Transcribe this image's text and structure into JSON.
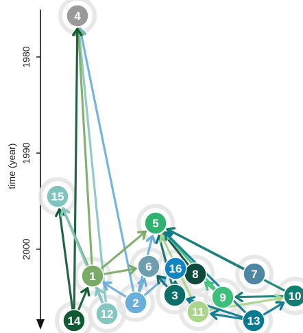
{
  "axis": {
    "title": "time (year)",
    "direction": "downward",
    "ticks": [
      {
        "label": "1980",
        "year": 1980
      },
      {
        "label": "1990",
        "year": 1990
      },
      {
        "label": "2000",
        "year": 2000
      }
    ]
  },
  "colors": {
    "axis": "#111111",
    "halo": "#e6e6e6"
  },
  "nodes": [
    {
      "id": "1",
      "label": "1",
      "color": "#7aab66"
    },
    {
      "id": "2",
      "label": "2",
      "color": "#6aaedc"
    },
    {
      "id": "3",
      "label": "3",
      "color": "#0b6e69"
    },
    {
      "id": "4",
      "label": "4",
      "color": "#9a9a9a"
    },
    {
      "id": "5",
      "label": "5",
      "color": "#2fb170"
    },
    {
      "id": "6",
      "label": "6",
      "color": "#6d9eae"
    },
    {
      "id": "7",
      "label": "7",
      "color": "#4e87a3"
    },
    {
      "id": "8",
      "label": "8",
      "color": "#0d4a3c"
    },
    {
      "id": "9",
      "label": "9",
      "color": "#3bbf7b"
    },
    {
      "id": "10",
      "label": "10",
      "color": "#117e72"
    },
    {
      "id": "11",
      "label": "11",
      "color": "#a9d68a"
    },
    {
      "id": "12",
      "label": "12",
      "color": "#86c6c0"
    },
    {
      "id": "13",
      "label": "13",
      "color": "#0a7a92"
    },
    {
      "id": "14",
      "label": "14",
      "color": "#0f5a33"
    },
    {
      "id": "15",
      "label": "15",
      "color": "#7fc4bf"
    },
    {
      "id": "16",
      "label": "16",
      "color": "#1184c2"
    }
  ],
  "edges": [
    {
      "from": "2",
      "to": "4",
      "color": "#6aaedc"
    },
    {
      "from": "12",
      "to": "4",
      "color": "#86c6c0"
    },
    {
      "from": "1",
      "to": "4",
      "color": "#7aab66"
    },
    {
      "from": "14",
      "to": "4",
      "color": "#0f5a33"
    },
    {
      "from": "14",
      "to": "15",
      "color": "#0f5a33"
    },
    {
      "from": "1",
      "to": "15",
      "color": "#7aab66"
    },
    {
      "from": "12",
      "to": "15",
      "color": "#86c6c0"
    },
    {
      "from": "14",
      "to": "1",
      "color": "#0f5a33"
    },
    {
      "from": "1",
      "to": "5",
      "color": "#7aab66"
    },
    {
      "from": "2",
      "to": "5",
      "color": "#6aaedc"
    },
    {
      "from": "1",
      "to": "6",
      "color": "#7aab66"
    },
    {
      "from": "12",
      "to": "1",
      "color": "#86c6c0"
    },
    {
      "from": "2",
      "to": "1",
      "color": "#6aaedc"
    },
    {
      "from": "2",
      "to": "6",
      "color": "#6aaedc"
    },
    {
      "from": "2",
      "to": "16",
      "color": "#6aaedc"
    },
    {
      "from": "3",
      "to": "6",
      "color": "#0b6e69"
    },
    {
      "from": "3",
      "to": "5",
      "color": "#0b6e69"
    },
    {
      "from": "3",
      "to": "16",
      "color": "#0b6e69"
    },
    {
      "from": "8",
      "to": "5",
      "color": "#0d4a3c"
    },
    {
      "from": "8",
      "to": "16",
      "color": "#0d4a3c"
    },
    {
      "from": "7",
      "to": "5",
      "color": "#4e87a3"
    },
    {
      "from": "9",
      "to": "5",
      "color": "#3bbf7b"
    },
    {
      "from": "9",
      "to": "8",
      "color": "#3bbf7b"
    },
    {
      "from": "10",
      "to": "5",
      "color": "#117e72"
    },
    {
      "from": "10",
      "to": "9",
      "color": "#117e72"
    },
    {
      "from": "11",
      "to": "10",
      "color": "#a9d68a"
    },
    {
      "from": "11",
      "to": "5",
      "color": "#a9d68a"
    },
    {
      "from": "13",
      "to": "5",
      "color": "#0a7a92"
    },
    {
      "from": "13",
      "to": "3",
      "color": "#0a7a92"
    },
    {
      "from": "13",
      "to": "11",
      "color": "#0a7a92"
    },
    {
      "from": "13",
      "to": "10",
      "color": "#0a7a92"
    }
  ]
}
